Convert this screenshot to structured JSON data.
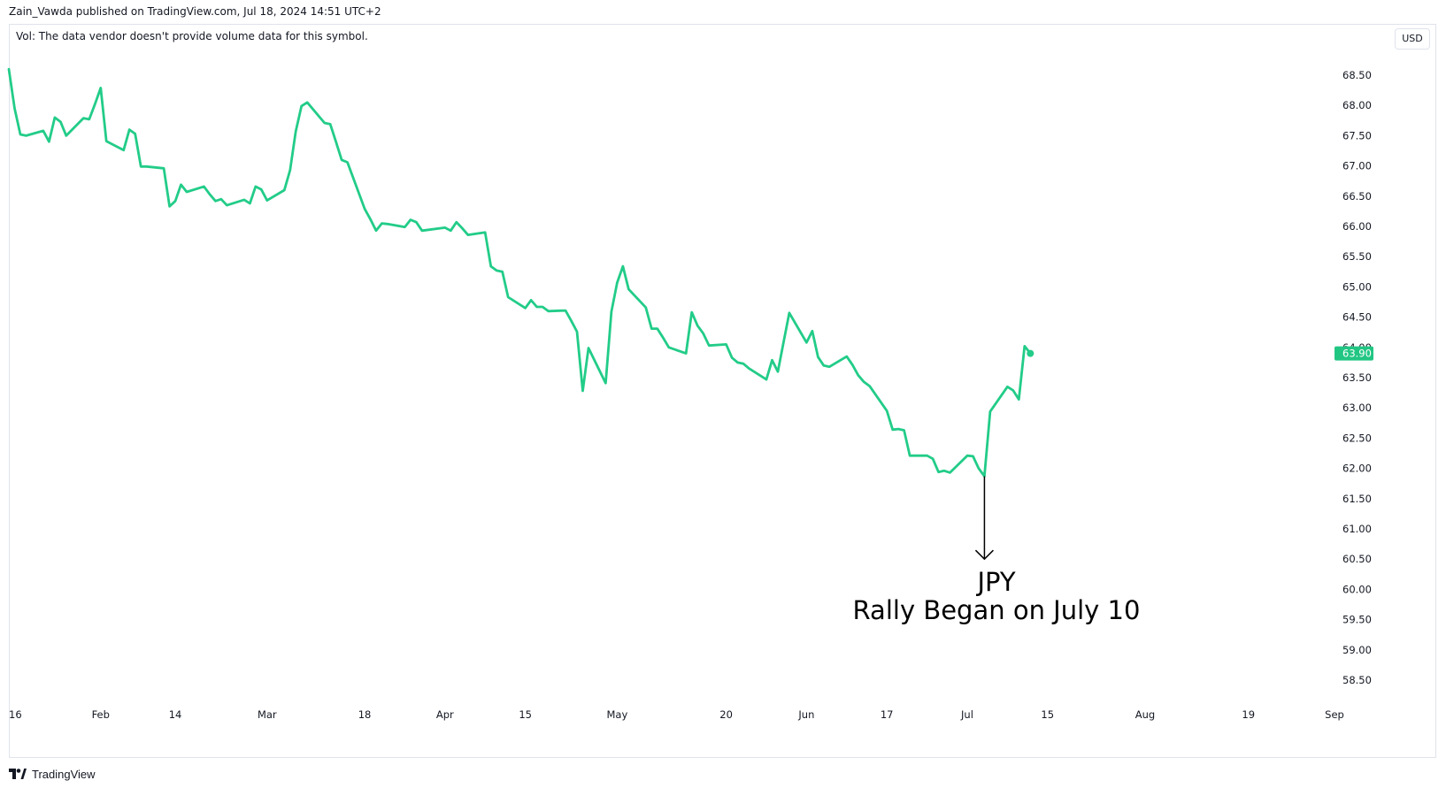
{
  "header": {
    "publisher_line": "Zain_Vawda published on TradingView.com, Jul 18, 2024 14:51 UTC+2"
  },
  "volume_note": "Vol: The data vendor doesn't provide volume data for this symbol.",
  "currency_button": "USD",
  "brand": {
    "name": "TradingView",
    "logo_icon": "tradingview-logo-icon"
  },
  "colors": {
    "line": "#22cc88",
    "price_tag": "#22c683",
    "annotation": "#000000"
  },
  "chart_data": {
    "type": "line",
    "title": "",
    "xlabel": "",
    "ylabel": "",
    "ylim": [
      58.2,
      69.3
    ],
    "xlim": [
      "2024-01-16",
      "2024-09-03"
    ],
    "grid": false,
    "y_ticks": [
      "68.50",
      "68.00",
      "67.50",
      "67.00",
      "66.50",
      "66.00",
      "65.50",
      "65.00",
      "64.50",
      "64.00",
      "63.50",
      "63.00",
      "62.50",
      "62.00",
      "61.50",
      "61.00",
      "60.50",
      "60.00",
      "59.50",
      "59.00",
      "58.50"
    ],
    "x_ticks": [
      {
        "label": "16",
        "date": "2024-01-16"
      },
      {
        "label": "Feb",
        "date": "2024-02-01"
      },
      {
        "label": "14",
        "date": "2024-02-14"
      },
      {
        "label": "Mar",
        "date": "2024-03-01"
      },
      {
        "label": "18",
        "date": "2024-03-18"
      },
      {
        "label": "Apr",
        "date": "2024-04-01"
      },
      {
        "label": "15",
        "date": "2024-04-15"
      },
      {
        "label": "May",
        "date": "2024-05-01"
      },
      {
        "label": "20",
        "date": "2024-05-20"
      },
      {
        "label": "Jun",
        "date": "2024-06-03"
      },
      {
        "label": "17",
        "date": "2024-06-17"
      },
      {
        "label": "Jul",
        "date": "2024-07-01"
      },
      {
        "label": "15",
        "date": "2024-07-15"
      },
      {
        "label": "Aug",
        "date": "2024-08-01"
      },
      {
        "label": "19",
        "date": "2024-08-19"
      },
      {
        "label": "Sep",
        "date": "2024-09-03"
      }
    ],
    "last_price": "63.90",
    "series": [
      {
        "values": [
          [
            "2024-01-16",
            68.6
          ],
          [
            "2024-01-17",
            67.95
          ],
          [
            "2024-01-18",
            67.52
          ],
          [
            "2024-01-19",
            67.5
          ],
          [
            "2024-01-22",
            67.58
          ],
          [
            "2024-01-23",
            67.4
          ],
          [
            "2024-01-24",
            67.8
          ],
          [
            "2024-01-25",
            67.73
          ],
          [
            "2024-01-26",
            67.5
          ],
          [
            "2024-01-29",
            67.79
          ],
          [
            "2024-01-30",
            67.77
          ],
          [
            "2024-01-31",
            68.02
          ],
          [
            "2024-02-01",
            68.29
          ],
          [
            "2024-02-02",
            67.41
          ],
          [
            "2024-02-05",
            67.26
          ],
          [
            "2024-02-06",
            67.6
          ],
          [
            "2024-02-07",
            67.53
          ],
          [
            "2024-02-08",
            66.99
          ],
          [
            "2024-02-09",
            66.99
          ],
          [
            "2024-02-12",
            66.96
          ],
          [
            "2024-02-13",
            66.33
          ],
          [
            "2024-02-14",
            66.42
          ],
          [
            "2024-02-15",
            66.69
          ],
          [
            "2024-02-16",
            66.57
          ],
          [
            "2024-02-19",
            66.66
          ],
          [
            "2024-02-20",
            66.53
          ],
          [
            "2024-02-21",
            66.42
          ],
          [
            "2024-02-22",
            66.45
          ],
          [
            "2024-02-23",
            66.35
          ],
          [
            "2024-02-26",
            66.44
          ],
          [
            "2024-02-27",
            66.38
          ],
          [
            "2024-02-28",
            66.66
          ],
          [
            "2024-02-29",
            66.61
          ],
          [
            "2024-03-01",
            66.43
          ],
          [
            "2024-03-04",
            66.6
          ],
          [
            "2024-03-05",
            66.93
          ],
          [
            "2024-03-06",
            67.57
          ],
          [
            "2024-03-07",
            67.99
          ],
          [
            "2024-03-08",
            68.05
          ],
          [
            "2024-03-11",
            67.71
          ],
          [
            "2024-03-12",
            67.69
          ],
          [
            "2024-03-13",
            67.4
          ],
          [
            "2024-03-14",
            67.1
          ],
          [
            "2024-03-15",
            67.06
          ],
          [
            "2024-03-18",
            66.29
          ],
          [
            "2024-03-19",
            66.12
          ],
          [
            "2024-03-20",
            65.93
          ],
          [
            "2024-03-21",
            66.05
          ],
          [
            "2024-03-22",
            66.04
          ],
          [
            "2024-03-25",
            65.99
          ],
          [
            "2024-03-26",
            66.11
          ],
          [
            "2024-03-27",
            66.07
          ],
          [
            "2024-03-28",
            65.93
          ],
          [
            "2024-04-01",
            65.98
          ],
          [
            "2024-04-02",
            65.93
          ],
          [
            "2024-04-03",
            66.07
          ],
          [
            "2024-04-04",
            65.97
          ],
          [
            "2024-04-05",
            65.86
          ],
          [
            "2024-04-08",
            65.9
          ],
          [
            "2024-04-09",
            65.34
          ],
          [
            "2024-04-10",
            65.27
          ],
          [
            "2024-04-11",
            65.25
          ],
          [
            "2024-04-12",
            64.83
          ],
          [
            "2024-04-15",
            64.65
          ],
          [
            "2024-04-16",
            64.78
          ],
          [
            "2024-04-17",
            64.67
          ],
          [
            "2024-04-18",
            64.67
          ],
          [
            "2024-04-19",
            64.6
          ],
          [
            "2024-04-22",
            64.61
          ],
          [
            "2024-04-23",
            64.44
          ],
          [
            "2024-04-24",
            64.26
          ],
          [
            "2024-04-25",
            63.28
          ],
          [
            "2024-04-26",
            63.99
          ],
          [
            "2024-04-29",
            63.41
          ],
          [
            "2024-04-30",
            64.59
          ],
          [
            "2024-05-01",
            65.07
          ],
          [
            "2024-05-02",
            65.34
          ],
          [
            "2024-05-03",
            64.96
          ],
          [
            "2024-05-06",
            64.66
          ],
          [
            "2024-05-07",
            64.31
          ],
          [
            "2024-05-08",
            64.31
          ],
          [
            "2024-05-09",
            64.16
          ],
          [
            "2024-05-10",
            64.0
          ],
          [
            "2024-05-13",
            63.9
          ],
          [
            "2024-05-14",
            64.58
          ],
          [
            "2024-05-15",
            64.36
          ],
          [
            "2024-05-16",
            64.23
          ],
          [
            "2024-05-17",
            64.03
          ],
          [
            "2024-05-20",
            64.05
          ],
          [
            "2024-05-21",
            63.83
          ],
          [
            "2024-05-22",
            63.75
          ],
          [
            "2024-05-23",
            63.73
          ],
          [
            "2024-05-24",
            63.65
          ],
          [
            "2024-05-27",
            63.47
          ],
          [
            "2024-05-28",
            63.79
          ],
          [
            "2024-05-29",
            63.6
          ],
          [
            "2024-05-30",
            64.09
          ],
          [
            "2024-05-31",
            64.57
          ],
          [
            "2024-06-03",
            64.08
          ],
          [
            "2024-06-04",
            64.27
          ],
          [
            "2024-06-05",
            63.84
          ],
          [
            "2024-06-06",
            63.7
          ],
          [
            "2024-06-07",
            63.68
          ],
          [
            "2024-06-10",
            63.85
          ],
          [
            "2024-06-11",
            63.71
          ],
          [
            "2024-06-12",
            63.54
          ],
          [
            "2024-06-13",
            63.43
          ],
          [
            "2024-06-14",
            63.36
          ],
          [
            "2024-06-17",
            62.95
          ],
          [
            "2024-06-18",
            62.64
          ],
          [
            "2024-06-19",
            62.65
          ],
          [
            "2024-06-20",
            62.63
          ],
          [
            "2024-06-21",
            62.21
          ],
          [
            "2024-06-24",
            62.21
          ],
          [
            "2024-06-25",
            62.16
          ],
          [
            "2024-06-26",
            61.94
          ],
          [
            "2024-06-27",
            61.96
          ],
          [
            "2024-06-28",
            61.93
          ],
          [
            "2024-07-01",
            62.21
          ],
          [
            "2024-07-02",
            62.2
          ],
          [
            "2024-07-03",
            62.0
          ],
          [
            "2024-07-04",
            61.87
          ],
          [
            "2024-07-05",
            62.94
          ],
          [
            "2024-07-08",
            63.35
          ],
          [
            "2024-07-09",
            63.29
          ],
          [
            "2024-07-10",
            63.14
          ],
          [
            "2024-07-11",
            64.02
          ],
          [
            "2024-07-12",
            63.9
          ]
        ]
      }
    ],
    "annotation": {
      "lines": [
        "JPY",
        "Rally Began on July 10"
      ],
      "arrow_from": [
        "2024-07-04",
        61.87
      ],
      "arrow_to": [
        "2024-07-04",
        60.5
      ]
    }
  }
}
